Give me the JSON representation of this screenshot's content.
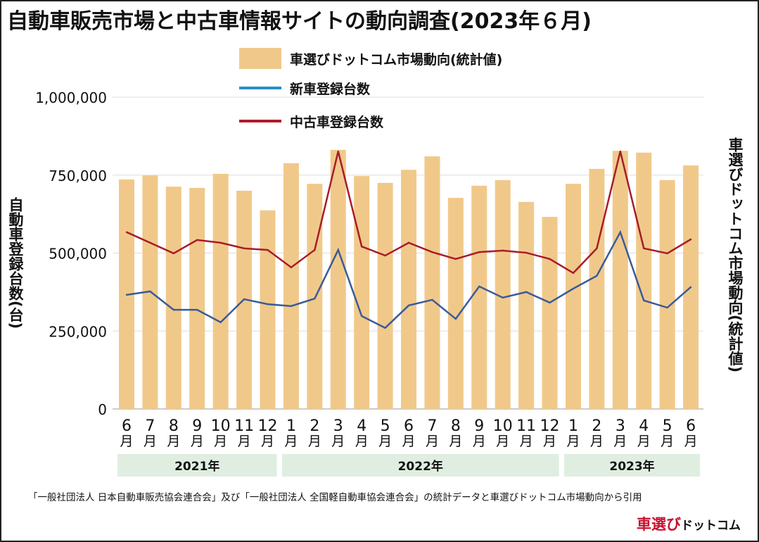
{
  "chart_data": {
    "type": "bar",
    "title": "自動車販売市場と中古車情報サイトの動向調査(2023年６月)",
    "ylabel": "自動車登録台数(台)",
    "y2label": "車選びドットコム市場動向(統計値)",
    "ylim": [
      0,
      1000000
    ],
    "yticks": [
      0,
      250000,
      500000,
      750000,
      1000000
    ],
    "ytick_labels": [
      "0",
      "250,000",
      "500,000",
      "750,000",
      "1,000,000"
    ],
    "grid": true,
    "legend": "top-center",
    "month_unit": "月",
    "categories": [
      "6",
      "7",
      "8",
      "9",
      "10",
      "11",
      "12",
      "1",
      "2",
      "3",
      "4",
      "5",
      "6",
      "7",
      "8",
      "9",
      "10",
      "11",
      "12",
      "1",
      "2",
      "3",
      "4",
      "5",
      "6"
    ],
    "years": [
      {
        "label": "2021年",
        "start": 0,
        "end": 6
      },
      {
        "label": "2022年",
        "start": 7,
        "end": 18
      },
      {
        "label": "2023年",
        "start": 19,
        "end": 24
      }
    ],
    "series": [
      {
        "name": "車選びドットコム市場動向(統計値)",
        "kind": "bar",
        "color": "#f0c98a",
        "values": [
          736000,
          749000,
          713000,
          709000,
          754000,
          700000,
          637000,
          788000,
          722000,
          831000,
          747000,
          725000,
          767000,
          810000,
          677000,
          716000,
          734000,
          664000,
          616000,
          722000,
          770000,
          828000,
          822000,
          734000,
          781000
        ]
      },
      {
        "name": "新車登録台数",
        "kind": "line",
        "color": "#3b5b98",
        "legend_color": "#2a8fc8",
        "values": [
          366000,
          377000,
          318000,
          318000,
          278000,
          352000,
          336000,
          330000,
          354000,
          510000,
          298000,
          260000,
          332000,
          350000,
          289000,
          393000,
          357000,
          375000,
          341000,
          386000,
          427000,
          567000,
          348000,
          325000,
          391000
        ]
      },
      {
        "name": "中古車登録台数",
        "kind": "line",
        "color": "#a81c2a",
        "legend_color": "#b01c2a",
        "values": [
          567000,
          533000,
          499000,
          542000,
          533000,
          515000,
          510000,
          454000,
          510000,
          826000,
          521000,
          492000,
          533000,
          503000,
          481000,
          503000,
          508000,
          501000,
          481000,
          436000,
          515000,
          826000,
          515000,
          499000,
          544000
        ]
      }
    ],
    "source_note": "「一般社団法人 日本自動車販売協会連合会」及び「一般社団法人 全国軽自動車協会連合会」の統計データと車選びドットコム市場動向から引用",
    "logo": {
      "part1": "車選び",
      "part2": "ドットコム"
    }
  }
}
